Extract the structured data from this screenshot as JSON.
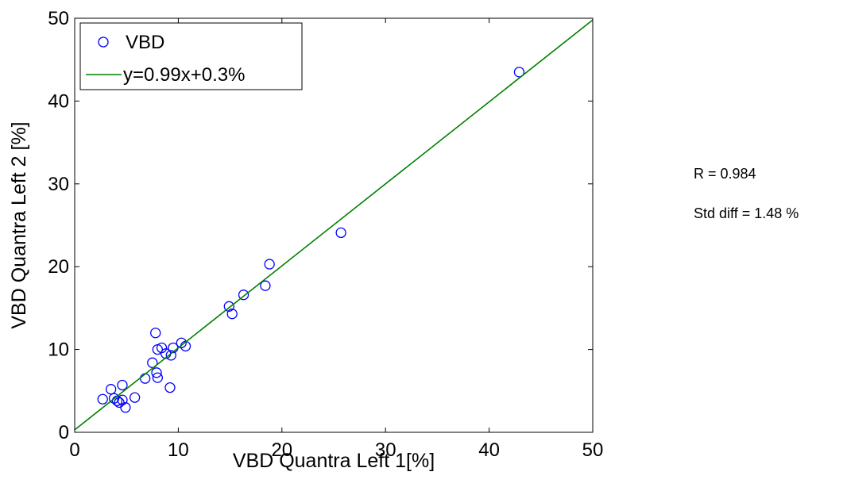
{
  "chart_data": {
    "type": "scatter",
    "xlabel": "VBD Quantra Left 1[%]",
    "ylabel": "VBD Quantra Left 2 [%]",
    "xlim": [
      0,
      50
    ],
    "ylim": [
      0,
      50
    ],
    "xticks": [
      0,
      10,
      20,
      30,
      40,
      50
    ],
    "yticks": [
      0,
      10,
      20,
      30,
      40,
      50
    ],
    "grid": false,
    "legend_position": "top-left",
    "series": [
      {
        "name": "VBD",
        "marker": "circle",
        "color": "#0000ff",
        "x": [
          2.7,
          3.5,
          3.8,
          4.1,
          4.3,
          4.6,
          4.6,
          4.9,
          5.8,
          6.8,
          7.5,
          7.8,
          7.9,
          8.0,
          8.0,
          8.4,
          8.8,
          9.2,
          9.3,
          9.5,
          10.3,
          10.7,
          14.9,
          15.2,
          16.3,
          18.4,
          18.8,
          25.7,
          42.9
        ],
        "y": [
          4.0,
          5.2,
          4.1,
          3.8,
          3.6,
          3.9,
          5.7,
          3.0,
          4.2,
          6.5,
          8.4,
          12.0,
          7.2,
          6.6,
          10.0,
          10.2,
          9.5,
          5.4,
          9.3,
          10.2,
          10.8,
          10.4,
          15.2,
          14.3,
          16.6,
          17.7,
          20.3,
          24.1,
          43.5
        ]
      },
      {
        "name": "y=0.99x+0.3%",
        "type": "line",
        "color": "#008000",
        "slope": 0.99,
        "intercept": 0.3,
        "x": [
          0,
          50
        ],
        "y": [
          0.3,
          49.8
        ]
      }
    ],
    "annotations": [
      "R = 0.984",
      "Std diff = 1.48 %"
    ]
  },
  "stats": {
    "r": "R = 0.984",
    "std_diff": "Std diff = 1.48 %"
  }
}
